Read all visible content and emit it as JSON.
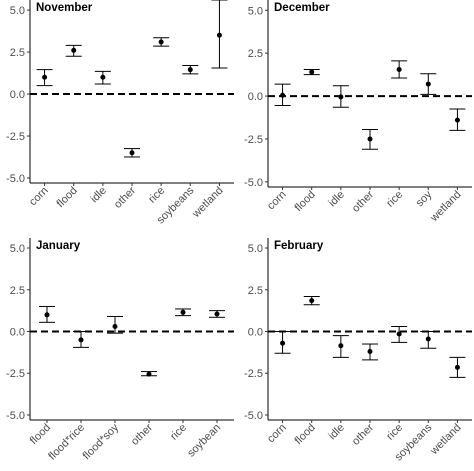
{
  "chart_data": [
    {
      "type": "scatter",
      "title": "November",
      "categories": [
        "corn",
        "flood",
        "idle",
        "other",
        "rice",
        "soybeans",
        "wetland"
      ],
      "values": [
        1.0,
        2.6,
        1.0,
        -3.5,
        3.1,
        1.45,
        3.5
      ],
      "lower": [
        0.5,
        2.25,
        0.6,
        -3.75,
        2.85,
        1.2,
        1.55
      ],
      "upper": [
        1.45,
        2.9,
        1.35,
        -3.25,
        3.35,
        1.7,
        5.6
      ],
      "ylim": [
        -5.3,
        5.6
      ],
      "yticks": [
        "-5.0",
        "-2.5",
        "0.0",
        "2.5",
        "5.0"
      ],
      "reference_line": 0,
      "grid": false
    },
    {
      "type": "scatter",
      "title": "December",
      "categories": [
        "corn",
        "flood",
        "idle",
        "other",
        "rice",
        "soy",
        "wetland"
      ],
      "values": [
        0.05,
        1.4,
        -0.05,
        -2.5,
        1.55,
        0.7,
        -1.4
      ],
      "lower": [
        -0.55,
        1.25,
        -0.65,
        -3.1,
        1.05,
        0.1,
        -2.0
      ],
      "upper": [
        0.7,
        1.55,
        0.6,
        -1.95,
        2.05,
        1.3,
        -0.75
      ],
      "ylim": [
        -5.3,
        5.6
      ],
      "yticks": [
        "-5.0",
        "-2.5",
        "0.0",
        "2.5",
        "5.0"
      ],
      "reference_line": 0,
      "grid": false
    },
    {
      "type": "scatter",
      "title": "January",
      "categories": [
        "flood",
        "flood*rice",
        "flood*soy",
        "other",
        "rice",
        "soybean"
      ],
      "values": [
        1.0,
        -0.5,
        0.3,
        -2.55,
        1.15,
        1.05
      ],
      "lower": [
        0.55,
        -0.95,
        -0.1,
        -2.65,
        0.95,
        0.85
      ],
      "upper": [
        1.5,
        0.0,
        0.9,
        -2.4,
        1.35,
        1.25
      ],
      "ylim": [
        -5.3,
        5.6
      ],
      "yticks": [
        "-5.0",
        "-2.5",
        "0.0",
        "2.5",
        "5.0"
      ],
      "reference_line": 0,
      "grid": false
    },
    {
      "type": "scatter",
      "title": "February",
      "categories": [
        "corn",
        "flood",
        "idle",
        "other",
        "rice",
        "soybeans",
        "wetland"
      ],
      "values": [
        -0.7,
        1.85,
        -0.85,
        -1.2,
        -0.15,
        -0.45,
        -2.15
      ],
      "lower": [
        -1.3,
        1.6,
        -1.55,
        -1.7,
        -0.65,
        -1.0,
        -2.75
      ],
      "upper": [
        0.0,
        2.1,
        -0.25,
        -0.75,
        0.3,
        0.0,
        -1.55
      ],
      "ylim": [
        -5.3,
        5.6
      ],
      "yticks": [
        "-5.0",
        "-2.5",
        "0.0",
        "2.5",
        "5.0"
      ],
      "reference_line": 0,
      "grid": false
    }
  ]
}
